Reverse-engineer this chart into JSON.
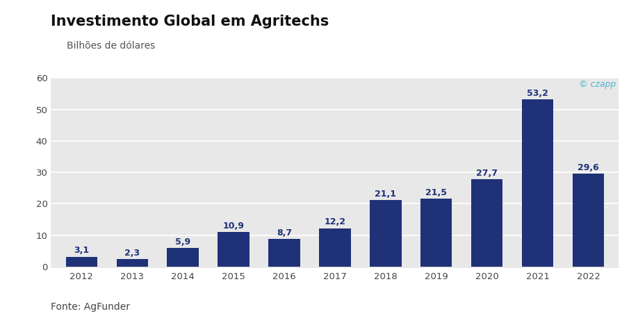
{
  "title": "Investimento Global em Agritechs",
  "subtitle": "Bilhões de dólares",
  "categories": [
    "2012",
    "2013",
    "2014",
    "2015",
    "2016",
    "2017",
    "2018",
    "2019",
    "2020",
    "2021",
    "2022"
  ],
  "values": [
    3.1,
    2.3,
    5.9,
    10.9,
    8.7,
    12.2,
    21.1,
    21.5,
    27.7,
    53.2,
    29.6
  ],
  "bar_color": "#1f3278",
  "background_color": "#e8e8e8",
  "outer_background": "#ffffff",
  "ylim": [
    0,
    60
  ],
  "yticks": [
    0,
    10,
    20,
    30,
    40,
    50,
    60
  ],
  "fonte": "Fonte: AgFunder",
  "watermark": "© czapp",
  "watermark_color": "#4ab8d0",
  "title_fontsize": 15,
  "subtitle_fontsize": 10,
  "label_fontsize": 9,
  "tick_fontsize": 9.5,
  "fonte_fontsize": 10,
  "grid_color": "#ffffff",
  "spine_color": "#cccccc"
}
